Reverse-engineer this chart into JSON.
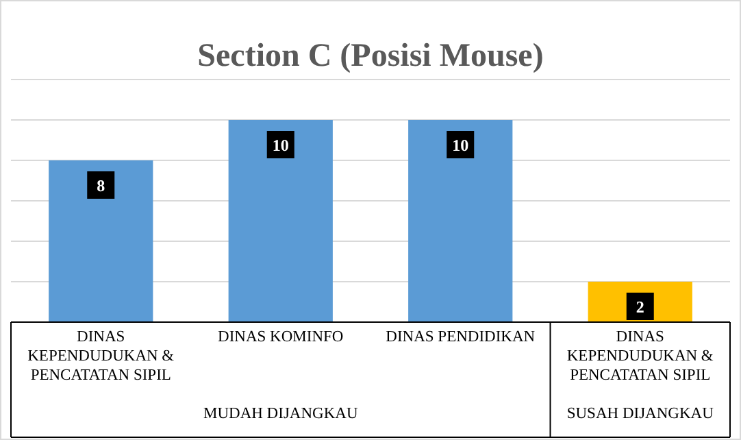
{
  "chart_data": {
    "type": "bar",
    "title": "Section C (Posisi Mouse)",
    "categories": [
      "DINAS KEPENDUDUKAN & PENCATATAN SIPIL",
      "DINAS KOMINFO",
      "DINAS PENDIDIKAN",
      "DINAS KEPENDUDUKAN & PENCATATAN SIPIL"
    ],
    "values": [
      8,
      10,
      10,
      2
    ],
    "colors": [
      "#5b9bd5",
      "#5b9bd5",
      "#5b9bd5",
      "#ffc000"
    ],
    "ylim": [
      0,
      12
    ],
    "yticks": [
      {
        "value": 0,
        "label": null
      },
      {
        "value": 2,
        "label": null
      },
      {
        "value": 4,
        "label": null
      },
      {
        "value": 6,
        "label": null
      },
      {
        "value": 8,
        "label": null
      },
      {
        "value": 10,
        "label": null
      },
      {
        "value": 12,
        "label": null
      }
    ],
    "tick_labels": "x",
    "grid": "y",
    "data_labels": true,
    "annotations": [
      "MUDAH DIJANGKAU",
      "SUSAH DIJANGKAU"
    ]
  }
}
